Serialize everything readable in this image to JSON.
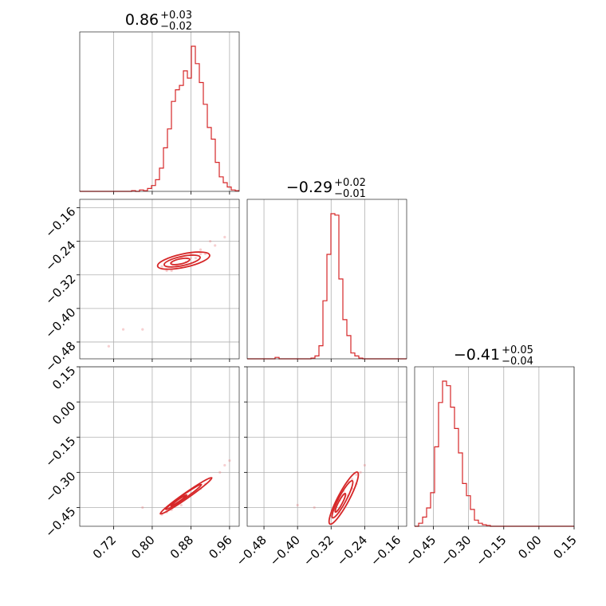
{
  "colors": {
    "series": "#d62728",
    "points": "#e8777a",
    "grid": "#b0b0b0"
  },
  "chart_data": {
    "type": "corner",
    "grid": true,
    "parameters": [
      {
        "range": [
          0.65,
          0.98
        ],
        "ticks": [
          0.72,
          0.8,
          0.88,
          0.96
        ],
        "tick_labels": [
          "0.72",
          "0.80",
          "0.88",
          "0.96"
        ],
        "title": {
          "main": "0.86",
          "sup": "+0.03",
          "sub": "−0.02"
        }
      },
      {
        "range": [
          -0.52,
          -0.14
        ],
        "ticks": [
          -0.48,
          -0.4,
          -0.32,
          -0.24,
          -0.16
        ],
        "tick_labels": [
          "−0.48",
          "−0.40",
          "−0.32",
          "−0.24",
          "−0.16"
        ],
        "title": {
          "main": "−0.29",
          "sup": "+0.02",
          "sub": "−0.01"
        }
      },
      {
        "range": [
          -0.53,
          0.15
        ],
        "ticks": [
          -0.45,
          -0.3,
          -0.15,
          0.0,
          0.15
        ],
        "tick_labels": [
          "−0.45",
          "−0.30",
          "−0.15",
          "0.00",
          "0.15"
        ],
        "title": {
          "main": "−0.41",
          "sup": "+0.05",
          "sub": "−0.04"
        }
      }
    ],
    "histograms": [
      {
        "param": 0,
        "bin_edges_start": 0.65,
        "bin_width": 0.00825,
        "counts": [
          0,
          0,
          0,
          0,
          0,
          0,
          0,
          0,
          0,
          0,
          0,
          0,
          0,
          0.005,
          0,
          0.01,
          0.005,
          0.02,
          0.04,
          0.08,
          0.16,
          0.3,
          0.43,
          0.62,
          0.7,
          0.73,
          0.83,
          0.78,
          1.0,
          0.88,
          0.75,
          0.6,
          0.44,
          0.36,
          0.2,
          0.1,
          0.06,
          0.03,
          0.01,
          0.005
        ]
      },
      {
        "param": 1,
        "bin_edges_start": -0.52,
        "bin_width": 0.0095,
        "counts": [
          0,
          0,
          0,
          0,
          0,
          0,
          0,
          0.01,
          0,
          0,
          0,
          0,
          0,
          0,
          0,
          0,
          0.005,
          0.02,
          0.09,
          0.4,
          0.72,
          1.0,
          0.99,
          0.55,
          0.27,
          0.16,
          0.04,
          0.02,
          0.005,
          0,
          0,
          0,
          0,
          0,
          0,
          0,
          0,
          0,
          0,
          0
        ]
      },
      {
        "param": 2,
        "bin_edges_start": -0.53,
        "bin_width": 0.017,
        "counts": [
          0,
          0.02,
          0.06,
          0.12,
          0.22,
          0.52,
          0.81,
          0.95,
          0.92,
          0.78,
          0.64,
          0.48,
          0.28,
          0.2,
          0.11,
          0.04,
          0.02,
          0.01,
          0.005,
          0,
          0,
          0,
          0,
          0,
          0,
          0,
          0,
          0,
          0,
          0,
          0,
          0,
          0,
          0,
          0,
          0,
          0,
          0,
          0,
          0
        ]
      }
    ],
    "pairs": [
      {
        "x_param": 0,
        "y_param": 1,
        "points": [
          [
            0.74,
            -0.45
          ],
          [
            0.78,
            -0.45
          ],
          [
            0.71,
            -0.49
          ],
          [
            0.84,
            -0.29
          ],
          [
            0.83,
            -0.31
          ],
          [
            0.86,
            -0.28
          ],
          [
            0.88,
            -0.27
          ],
          [
            0.9,
            -0.26
          ],
          [
            0.92,
            -0.24
          ],
          [
            0.85,
            -0.3
          ],
          [
            0.87,
            -0.29
          ],
          [
            0.89,
            -0.28
          ],
          [
            0.93,
            -0.25
          ],
          [
            0.95,
            -0.23
          ],
          [
            0.82,
            -0.3
          ],
          [
            0.86,
            -0.3
          ],
          [
            0.91,
            -0.27
          ],
          [
            0.84,
            -0.31
          ],
          [
            0.88,
            -0.28
          ],
          [
            0.9,
            -0.27
          ]
        ],
        "contours": [
          {
            "center": [
              0.865,
              -0.286
            ],
            "rx": 0.055,
            "ry": 0.016,
            "angle": -12
          },
          {
            "center": [
              0.862,
              -0.287
            ],
            "rx": 0.038,
            "ry": 0.011,
            "angle": -12
          },
          {
            "center": [
              0.858,
              -0.288
            ],
            "rx": 0.02,
            "ry": 0.006,
            "angle": -12
          }
        ]
      },
      {
        "x_param": 0,
        "y_param": 2,
        "points": [
          [
            0.78,
            -0.45
          ],
          [
            0.82,
            -0.48
          ],
          [
            0.85,
            -0.43
          ],
          [
            0.88,
            -0.39
          ],
          [
            0.91,
            -0.35
          ],
          [
            0.94,
            -0.3
          ],
          [
            0.96,
            -0.25
          ],
          [
            0.83,
            -0.47
          ],
          [
            0.87,
            -0.41
          ],
          [
            0.9,
            -0.37
          ],
          [
            0.92,
            -0.33
          ],
          [
            0.86,
            -0.44
          ],
          [
            0.89,
            -0.38
          ],
          [
            0.95,
            -0.27
          ],
          [
            0.84,
            -0.46
          ]
        ],
        "contours": [
          {
            "center": [
              0.87,
              -0.4
            ],
            "rx": 0.065,
            "ry": 0.012,
            "angle": -35
          },
          {
            "center": [
              0.865,
              -0.405
            ],
            "rx": 0.045,
            "ry": 0.008,
            "angle": -35
          },
          {
            "center": [
              0.855,
              -0.42
            ],
            "rx": 0.02,
            "ry": 0.004,
            "angle": -35
          }
        ]
      },
      {
        "x_param": 1,
        "y_param": 2,
        "points": [
          [
            -0.4,
            -0.44
          ],
          [
            -0.36,
            -0.45
          ],
          [
            -0.3,
            -0.47
          ],
          [
            -0.28,
            -0.4
          ],
          [
            -0.26,
            -0.35
          ],
          [
            -0.25,
            -0.3
          ],
          [
            -0.27,
            -0.33
          ],
          [
            -0.29,
            -0.38
          ],
          [
            -0.31,
            -0.46
          ],
          [
            -0.24,
            -0.27
          ],
          [
            -0.27,
            -0.37
          ],
          [
            -0.3,
            -0.42
          ],
          [
            -0.28,
            -0.34
          ],
          [
            -0.26,
            -0.31
          ]
        ],
        "contours": [
          {
            "center": [
              -0.29,
              -0.41
            ],
            "rx": 0.07,
            "ry": 0.024,
            "angle": -62
          },
          {
            "center": [
              -0.293,
              -0.415
            ],
            "rx": 0.05,
            "ry": 0.016,
            "angle": -62
          },
          {
            "center": [
              -0.298,
              -0.43
            ],
            "rx": 0.025,
            "ry": 0.008,
            "angle": -62
          }
        ]
      }
    ]
  }
}
